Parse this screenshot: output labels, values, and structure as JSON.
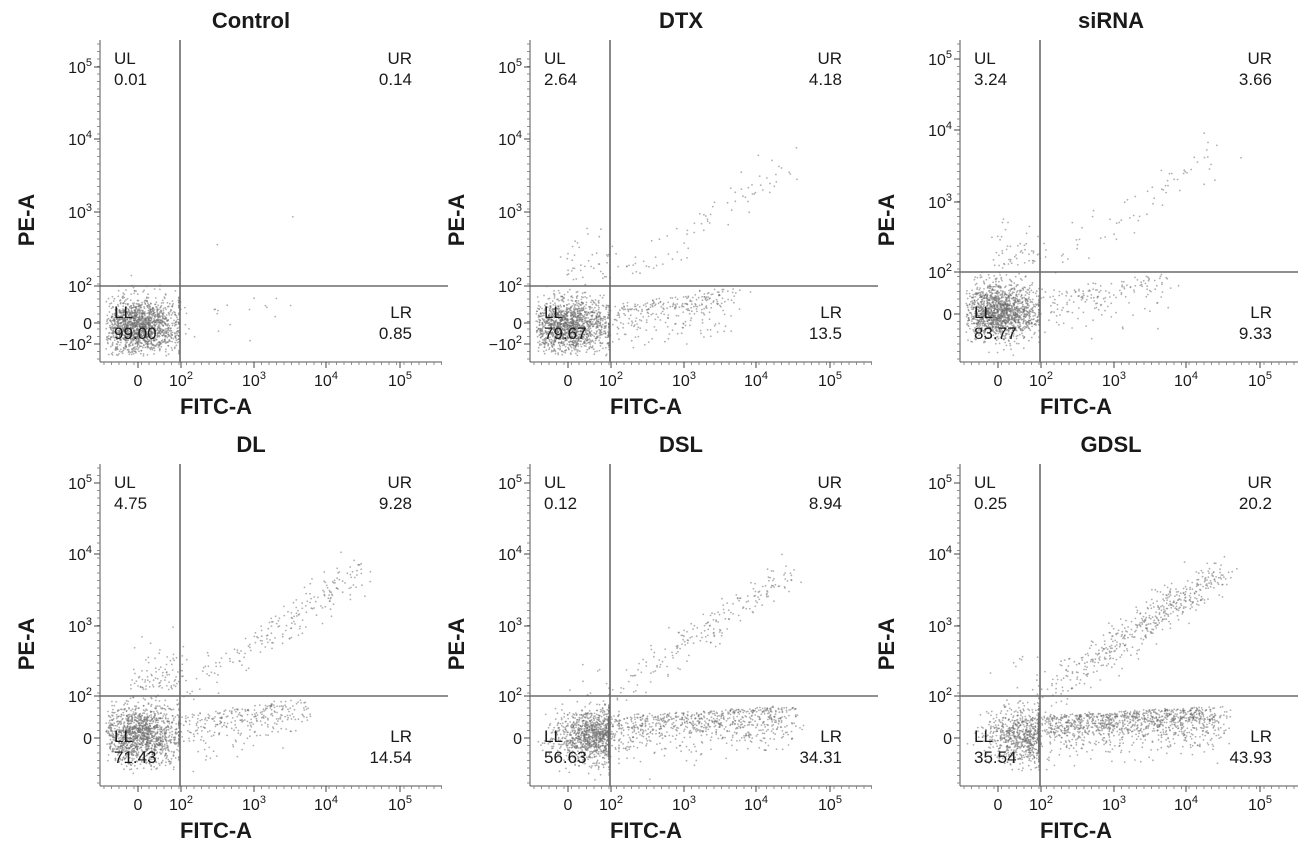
{
  "chart_data": [
    {
      "type": "scatter",
      "title": "Control",
      "xlabel": "FITC-A",
      "ylabel": "PE-A",
      "x_ticks": [
        "0",
        "10²",
        "10³",
        "10⁴",
        "10⁵"
      ],
      "y_ticks": [
        "−10²",
        "0",
        "10²",
        "10³",
        "10⁴",
        "10⁵"
      ],
      "quadrants": [
        {
          "label": "UL",
          "value": "0.01"
        },
        {
          "label": "UR",
          "value": "0.14"
        },
        {
          "label": "LL",
          "value": "99.00"
        },
        {
          "label": "LR",
          "value": "0.85"
        }
      ]
    },
    {
      "type": "scatter",
      "title": "DTX",
      "xlabel": "FITC-A",
      "ylabel": "PE-A",
      "x_ticks": [
        "0",
        "10²",
        "10³",
        "10⁴",
        "10⁵"
      ],
      "y_ticks": [
        "−10²",
        "0",
        "10²",
        "10³",
        "10⁴",
        "10⁵"
      ],
      "quadrants": [
        {
          "label": "UL",
          "value": "2.64"
        },
        {
          "label": "UR",
          "value": "4.18"
        },
        {
          "label": "LL",
          "value": "79.67"
        },
        {
          "label": "LR",
          "value": "13.5"
        }
      ]
    },
    {
      "type": "scatter",
      "title": "siRNA",
      "xlabel": "FITC-A",
      "ylabel": "PE-A",
      "x_ticks": [
        "0",
        "10²",
        "10³",
        "10⁴",
        "10⁵"
      ],
      "y_ticks": [
        "0",
        "10²",
        "10³",
        "10⁴",
        "10⁵"
      ],
      "quadrants": [
        {
          "label": "UL",
          "value": "3.24"
        },
        {
          "label": "UR",
          "value": "3.66"
        },
        {
          "label": "LL",
          "value": "83.77"
        },
        {
          "label": "LR",
          "value": "9.33"
        }
      ]
    },
    {
      "type": "scatter",
      "title": "DL",
      "xlabel": "FITC-A",
      "ylabel": "PE-A",
      "x_ticks": [
        "0",
        "10²",
        "10³",
        "10⁴",
        "10⁵"
      ],
      "y_ticks": [
        "0",
        "10²",
        "10³",
        "10⁴",
        "10⁵"
      ],
      "quadrants": [
        {
          "label": "UL",
          "value": "4.75"
        },
        {
          "label": "UR",
          "value": "9.28"
        },
        {
          "label": "LL",
          "value": "71.43"
        },
        {
          "label": "LR",
          "value": "14.54"
        }
      ]
    },
    {
      "type": "scatter",
      "title": "DSL",
      "xlabel": "FITC-A",
      "ylabel": "PE-A",
      "x_ticks": [
        "0",
        "10²",
        "10³",
        "10⁴",
        "10⁵"
      ],
      "y_ticks": [
        "0",
        "10²",
        "10³",
        "10⁴",
        "10⁵"
      ],
      "quadrants": [
        {
          "label": "UL",
          "value": "0.12"
        },
        {
          "label": "UR",
          "value": "8.94"
        },
        {
          "label": "LL",
          "value": "56.63"
        },
        {
          "label": "LR",
          "value": "34.31"
        }
      ]
    },
    {
      "type": "scatter",
      "title": "GDSL",
      "xlabel": "FITC-A",
      "ylabel": "PE-A",
      "x_ticks": [
        "0",
        "10²",
        "10³",
        "10⁴",
        "10⁵"
      ],
      "y_ticks": [
        "0",
        "10²",
        "10³",
        "10⁴",
        "10⁵"
      ],
      "quadrants": [
        {
          "label": "UL",
          "value": "0.25"
        },
        {
          "label": "UR",
          "value": "20.2"
        },
        {
          "label": "LL",
          "value": "35.54"
        },
        {
          "label": "LR",
          "value": "43.93"
        }
      ]
    }
  ]
}
